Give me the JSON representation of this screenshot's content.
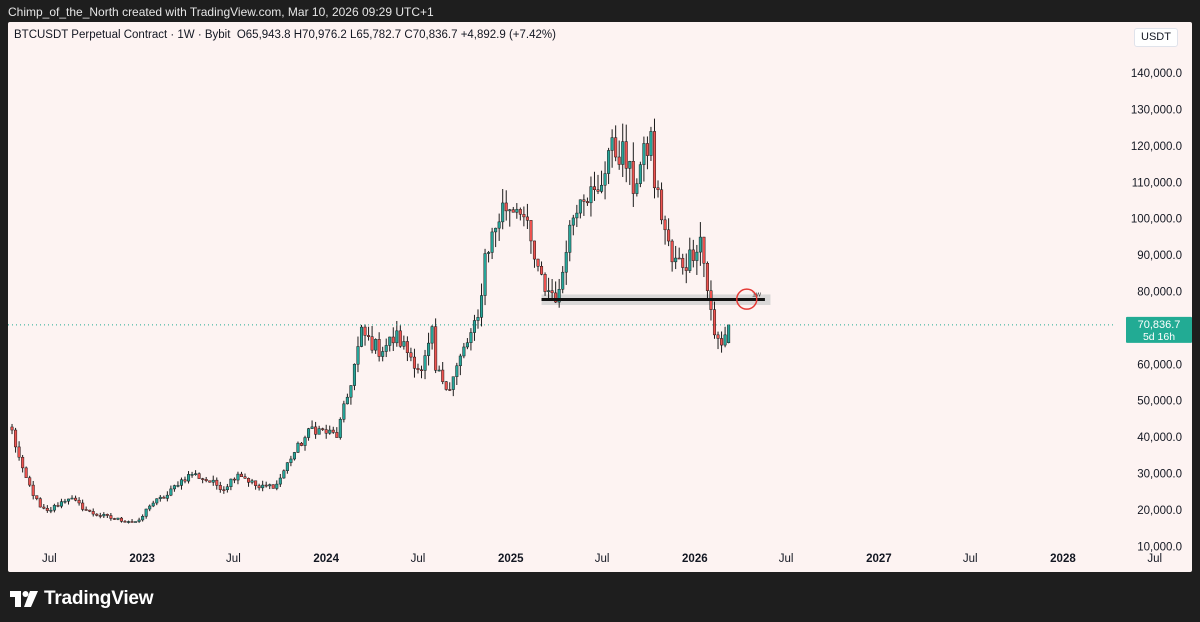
{
  "attribution": "Chimp_of_the_North created with TradingView.com, Mar 10, 2026 09:29 UTC+1",
  "header": {
    "symbol": "BTCUSDT Perpetual Contract · 1W · Bybit",
    "open": "O65,943.8",
    "high": "H70,976.2",
    "low": "L65,782.7",
    "close": "C70,836.7",
    "change": "+4,892.9 (+7.42%)"
  },
  "currency": "USDT",
  "footer": {
    "brand": "TradingView",
    "logo_icon": "tradingview-logo-icon"
  },
  "colors": {
    "up": "#26a69a",
    "down": "#ef5350",
    "background": "#fdf3f2",
    "price_label": "#22ab94"
  },
  "chart_data": {
    "type": "candlestick",
    "timeframe": "1W",
    "y_axis": {
      "ticks": [
        10000,
        20000,
        30000,
        40000,
        50000,
        60000,
        70000,
        80000,
        90000,
        100000,
        110000,
        120000,
        130000,
        140000
      ],
      "tick_labels": [
        "10,000.0",
        "20,000.0",
        "30,000.0",
        "40,000.0",
        "50,000.0",
        "60,000.0",
        "70,000.0",
        "80,000.0",
        "90,000.0",
        "100,000.0",
        "110,000.0",
        "120,000.0",
        "130,000.0",
        "140,000.0"
      ],
      "range": [
        9000,
        148000
      ],
      "position": "right"
    },
    "x_axis": {
      "range": [
        "2022-04-10",
        "2028-09-01"
      ],
      "ticks": [
        {
          "date": "2022-07-01",
          "label": "Jul"
        },
        {
          "date": "2023-01-01",
          "label": "2023"
        },
        {
          "date": "2023-07-01",
          "label": "Jul"
        },
        {
          "date": "2024-01-01",
          "label": "2024"
        },
        {
          "date": "2024-07-01",
          "label": "Jul"
        },
        {
          "date": "2025-01-01",
          "label": "2025"
        },
        {
          "date": "2025-07-01",
          "label": "Jul"
        },
        {
          "date": "2026-01-01",
          "label": "2026"
        },
        {
          "date": "2026-07-01",
          "label": "Jul"
        },
        {
          "date": "2027-01-01",
          "label": "2027"
        },
        {
          "date": "2027-07-01",
          "label": "Jul"
        },
        {
          "date": "2028-01-01",
          "label": "2028"
        },
        {
          "date": "2028-07-01",
          "label": "Jul"
        }
      ]
    },
    "price_path": [
      [
        "2022-04-18",
        41500
      ],
      [
        "2022-05-09",
        30500
      ],
      [
        "2022-06-13",
        20500
      ],
      [
        "2022-06-27",
        19500
      ],
      [
        "2022-08-08",
        23500
      ],
      [
        "2022-09-19",
        19300
      ],
      [
        "2022-11-07",
        17500
      ],
      [
        "2022-12-26",
        16700
      ],
      [
        "2023-01-16",
        21500
      ],
      [
        "2023-02-20",
        24000
      ],
      [
        "2023-03-13",
        27500
      ],
      [
        "2023-04-10",
        30000
      ],
      [
        "2023-06-12",
        26000
      ],
      [
        "2023-07-10",
        30300
      ],
      [
        "2023-08-21",
        26000
      ],
      [
        "2023-09-25",
        27000
      ],
      [
        "2023-10-23",
        34500
      ],
      [
        "2023-12-04",
        42500
      ],
      [
        "2024-01-22",
        40500
      ],
      [
        "2024-02-12",
        51000
      ],
      [
        "2024-03-11",
        68500
      ],
      [
        "2024-04-15",
        64000
      ],
      [
        "2024-05-20",
        67500
      ],
      [
        "2024-06-24",
        61000
      ],
      [
        "2024-07-08",
        57500
      ],
      [
        "2024-07-29",
        68000
      ],
      [
        "2024-08-05",
        58000
      ],
      [
        "2024-09-02",
        54000
      ],
      [
        "2024-09-30",
        64000
      ],
      [
        "2024-10-28",
        72000
      ],
      [
        "2024-11-11",
        90000
      ],
      [
        "2024-12-16",
        103000
      ],
      [
        "2025-01-20",
        104000
      ],
      [
        "2025-02-24",
        85000
      ],
      [
        "2025-03-10",
        81000
      ],
      [
        "2025-04-07",
        78500
      ],
      [
        "2025-04-21",
        94000
      ],
      [
        "2025-05-19",
        108000
      ],
      [
        "2025-06-23",
        106000
      ],
      [
        "2025-07-14",
        119000
      ],
      [
        "2025-08-11",
        118000
      ],
      [
        "2025-09-01",
        109000
      ],
      [
        "2025-10-06",
        122000
      ],
      [
        "2025-10-13",
        110000
      ],
      [
        "2025-11-17",
        88000
      ],
      [
        "2025-12-15",
        88000
      ],
      [
        "2026-01-12",
        95000
      ],
      [
        "2026-02-02",
        74000
      ],
      [
        "2026-02-09",
        67500
      ],
      [
        "2026-02-23",
        66000
      ],
      [
        "2026-03-09",
        70836.7
      ]
    ],
    "last_candle": {
      "open": 65943.8,
      "high": 70976.2,
      "low": 65782.7,
      "close": 70836.7
    },
    "annotations": {
      "support_zone": {
        "x_start": "2025-03-03",
        "x_end": "2026-05-31",
        "y_low": 76300,
        "y_high": 79200
      },
      "support_line": {
        "x_start": "2025-03-03",
        "x_end": "2026-05-20",
        "y": 77800,
        "label": "1w"
      },
      "circle_marker": {
        "x": "2026-04-14",
        "y": 77900
      }
    },
    "last_price": {
      "value": 70836.7,
      "label": "70,836.7",
      "countdown": "5d 16h"
    }
  }
}
